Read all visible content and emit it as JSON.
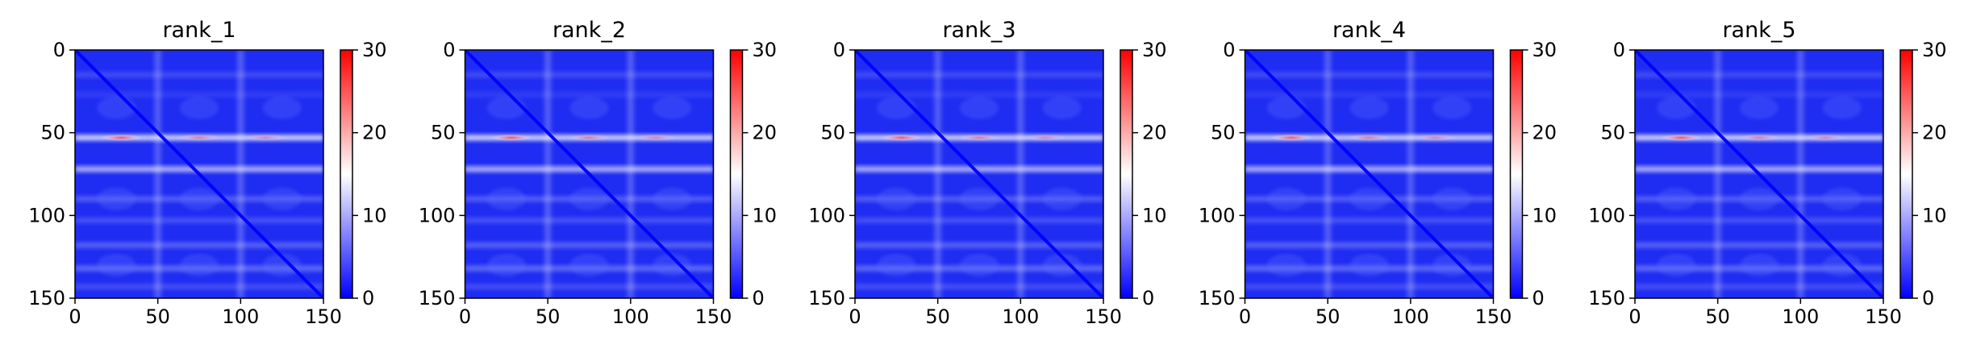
{
  "chart_data": [
    {
      "type": "heatmap",
      "title": "rank_1",
      "x_ticks": [
        0,
        50,
        100,
        150
      ],
      "y_ticks": [
        0,
        50,
        100,
        150
      ],
      "xlim": [
        0,
        150
      ],
      "ylim": [
        150,
        0
      ],
      "colorbar": {
        "ticks": [
          0,
          10,
          20,
          30
        ],
        "range": [
          0,
          30
        ],
        "colormap": "bwr"
      }
    },
    {
      "type": "heatmap",
      "title": "rank_2",
      "x_ticks": [
        0,
        50,
        100,
        150
      ],
      "y_ticks": [
        0,
        50,
        100,
        150
      ],
      "xlim": [
        0,
        150
      ],
      "ylim": [
        150,
        0
      ],
      "colorbar": {
        "ticks": [
          0,
          10,
          20,
          30
        ],
        "range": [
          0,
          30
        ],
        "colormap": "bwr"
      }
    },
    {
      "type": "heatmap",
      "title": "rank_3",
      "x_ticks": [
        0,
        50,
        100,
        150
      ],
      "y_ticks": [
        0,
        50,
        100,
        150
      ],
      "xlim": [
        0,
        150
      ],
      "ylim": [
        150,
        0
      ],
      "colorbar": {
        "ticks": [
          0,
          10,
          20,
          30
        ],
        "range": [
          0,
          30
        ],
        "colormap": "bwr"
      }
    },
    {
      "type": "heatmap",
      "title": "rank_4",
      "x_ticks": [
        0,
        50,
        100,
        150
      ],
      "y_ticks": [
        0,
        50,
        100,
        150
      ],
      "xlim": [
        0,
        150
      ],
      "ylim": [
        150,
        0
      ],
      "colorbar": {
        "ticks": [
          0,
          10,
          20,
          30
        ],
        "range": [
          0,
          30
        ],
        "colormap": "bwr"
      }
    },
    {
      "type": "heatmap",
      "title": "rank_5",
      "x_ticks": [
        0,
        50,
        100,
        150
      ],
      "y_ticks": [
        0,
        50,
        100,
        150
      ],
      "xlim": [
        0,
        150
      ],
      "ylim": [
        150,
        0
      ],
      "colorbar": {
        "ticks": [
          0,
          10,
          20,
          30
        ],
        "range": [
          0,
          30
        ],
        "colormap": "bwr"
      }
    }
  ],
  "colors": {
    "low": "#0000ff",
    "mid": "#ffffff",
    "high": "#ff0000",
    "axis": "#000000"
  }
}
